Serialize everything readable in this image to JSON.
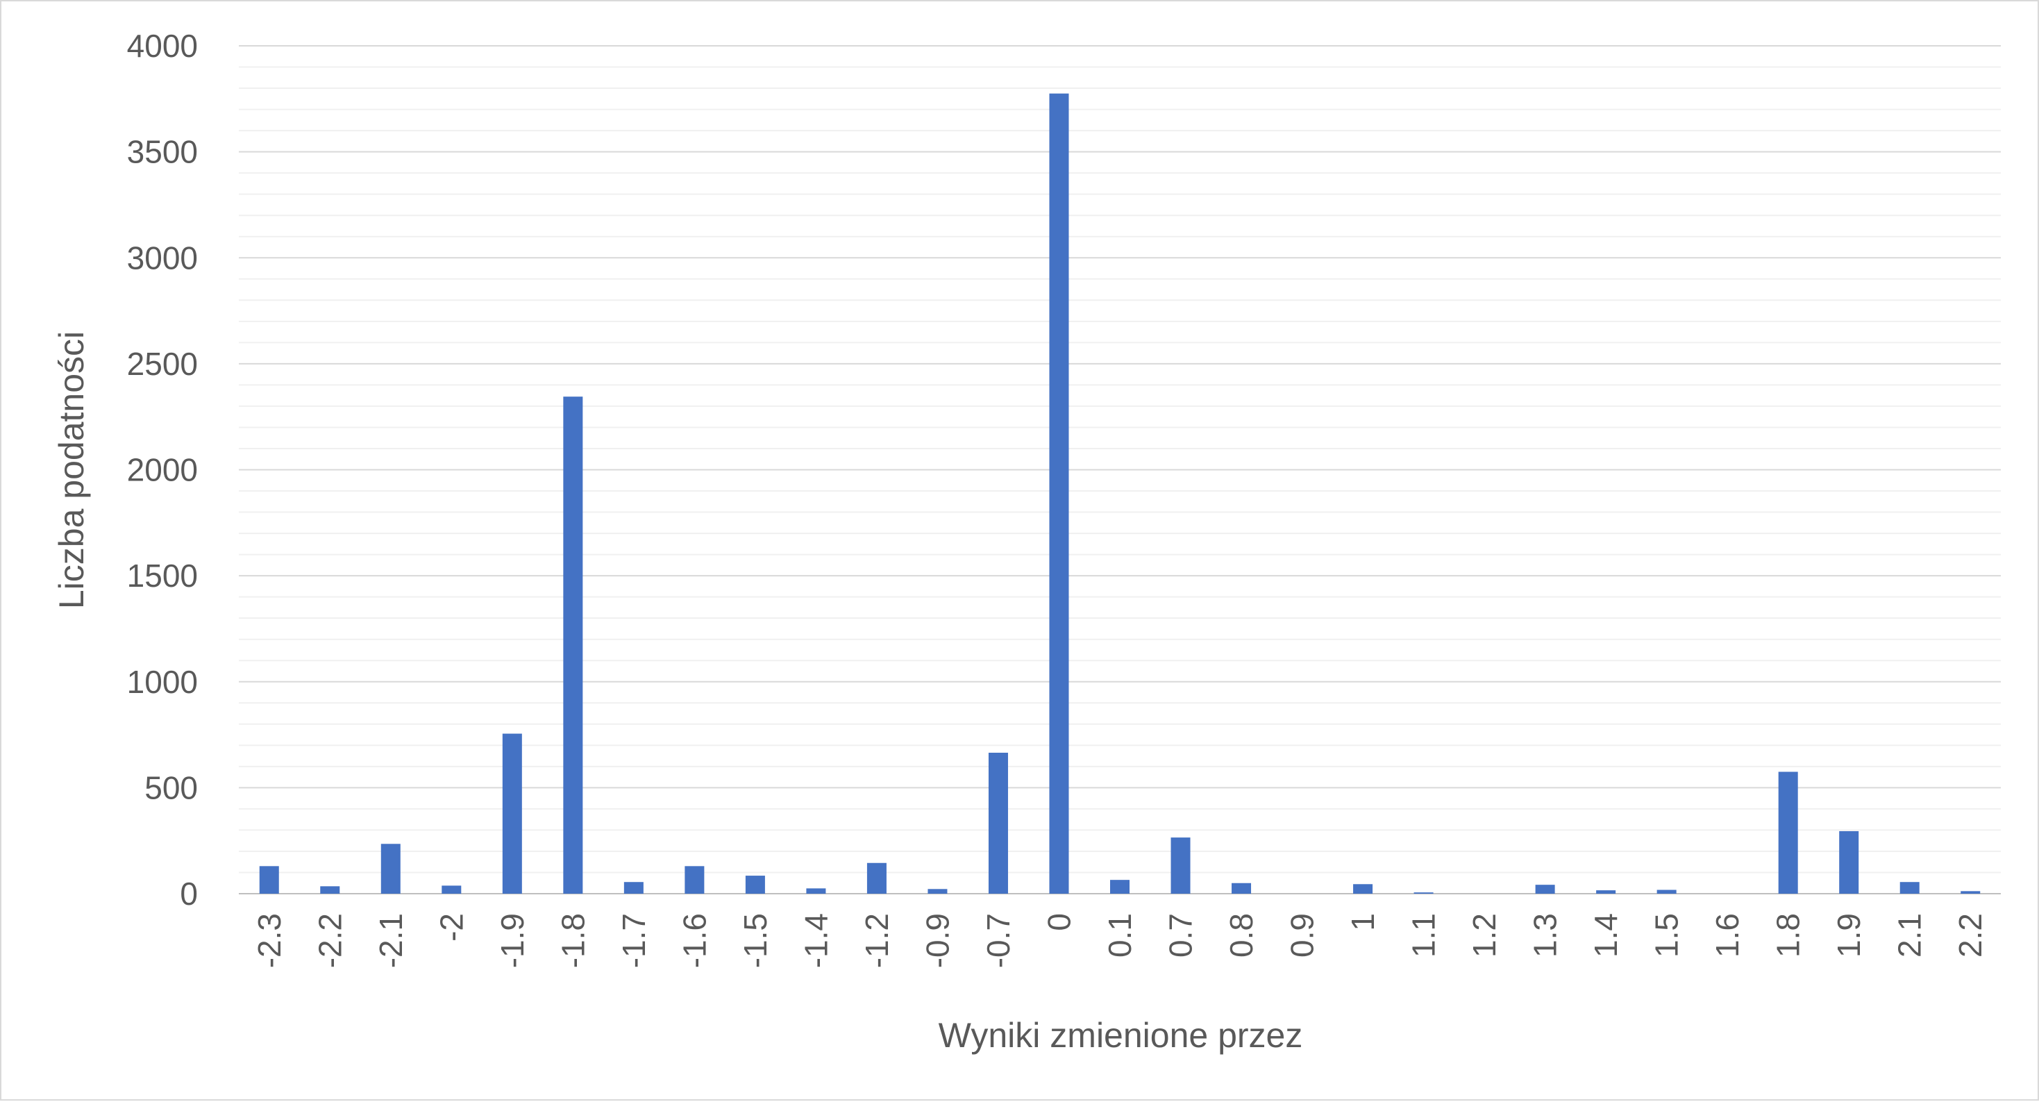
{
  "chart_data": {
    "type": "bar",
    "xlabel": "Wyniki zmienione przez",
    "ylabel": "Liczba podatności",
    "ylim": [
      0,
      4000
    ],
    "y_ticks": [
      0,
      500,
      1000,
      1500,
      2000,
      2500,
      3000,
      3500,
      4000
    ],
    "minor_gridlines": true,
    "categories": [
      "-2.3",
      "-2.2",
      "-2.1",
      "-2",
      "-1.9",
      "-1.8",
      "-1.7",
      "-1.6",
      "-1.5",
      "-1.4",
      "-1.2",
      "-0.9",
      "-0.7",
      "0",
      "0.1",
      "0.7",
      "0.8",
      "0.9",
      "1",
      "1.1",
      "1.2",
      "1.3",
      "1.4",
      "1.5",
      "1.6",
      "1.8",
      "1.9",
      "2.1",
      "2.2"
    ],
    "values": [
      130,
      35,
      235,
      38,
      755,
      2345,
      55,
      130,
      85,
      25,
      145,
      22,
      665,
      3775,
      65,
      265,
      50,
      0,
      45,
      6,
      0,
      42,
      16,
      18,
      0,
      575,
      295,
      55,
      12
    ],
    "colors": {
      "bar": "#4472c4",
      "major_grid": "#d9d9d9",
      "minor_grid": "#f0f0f0",
      "text": "#595959"
    }
  }
}
